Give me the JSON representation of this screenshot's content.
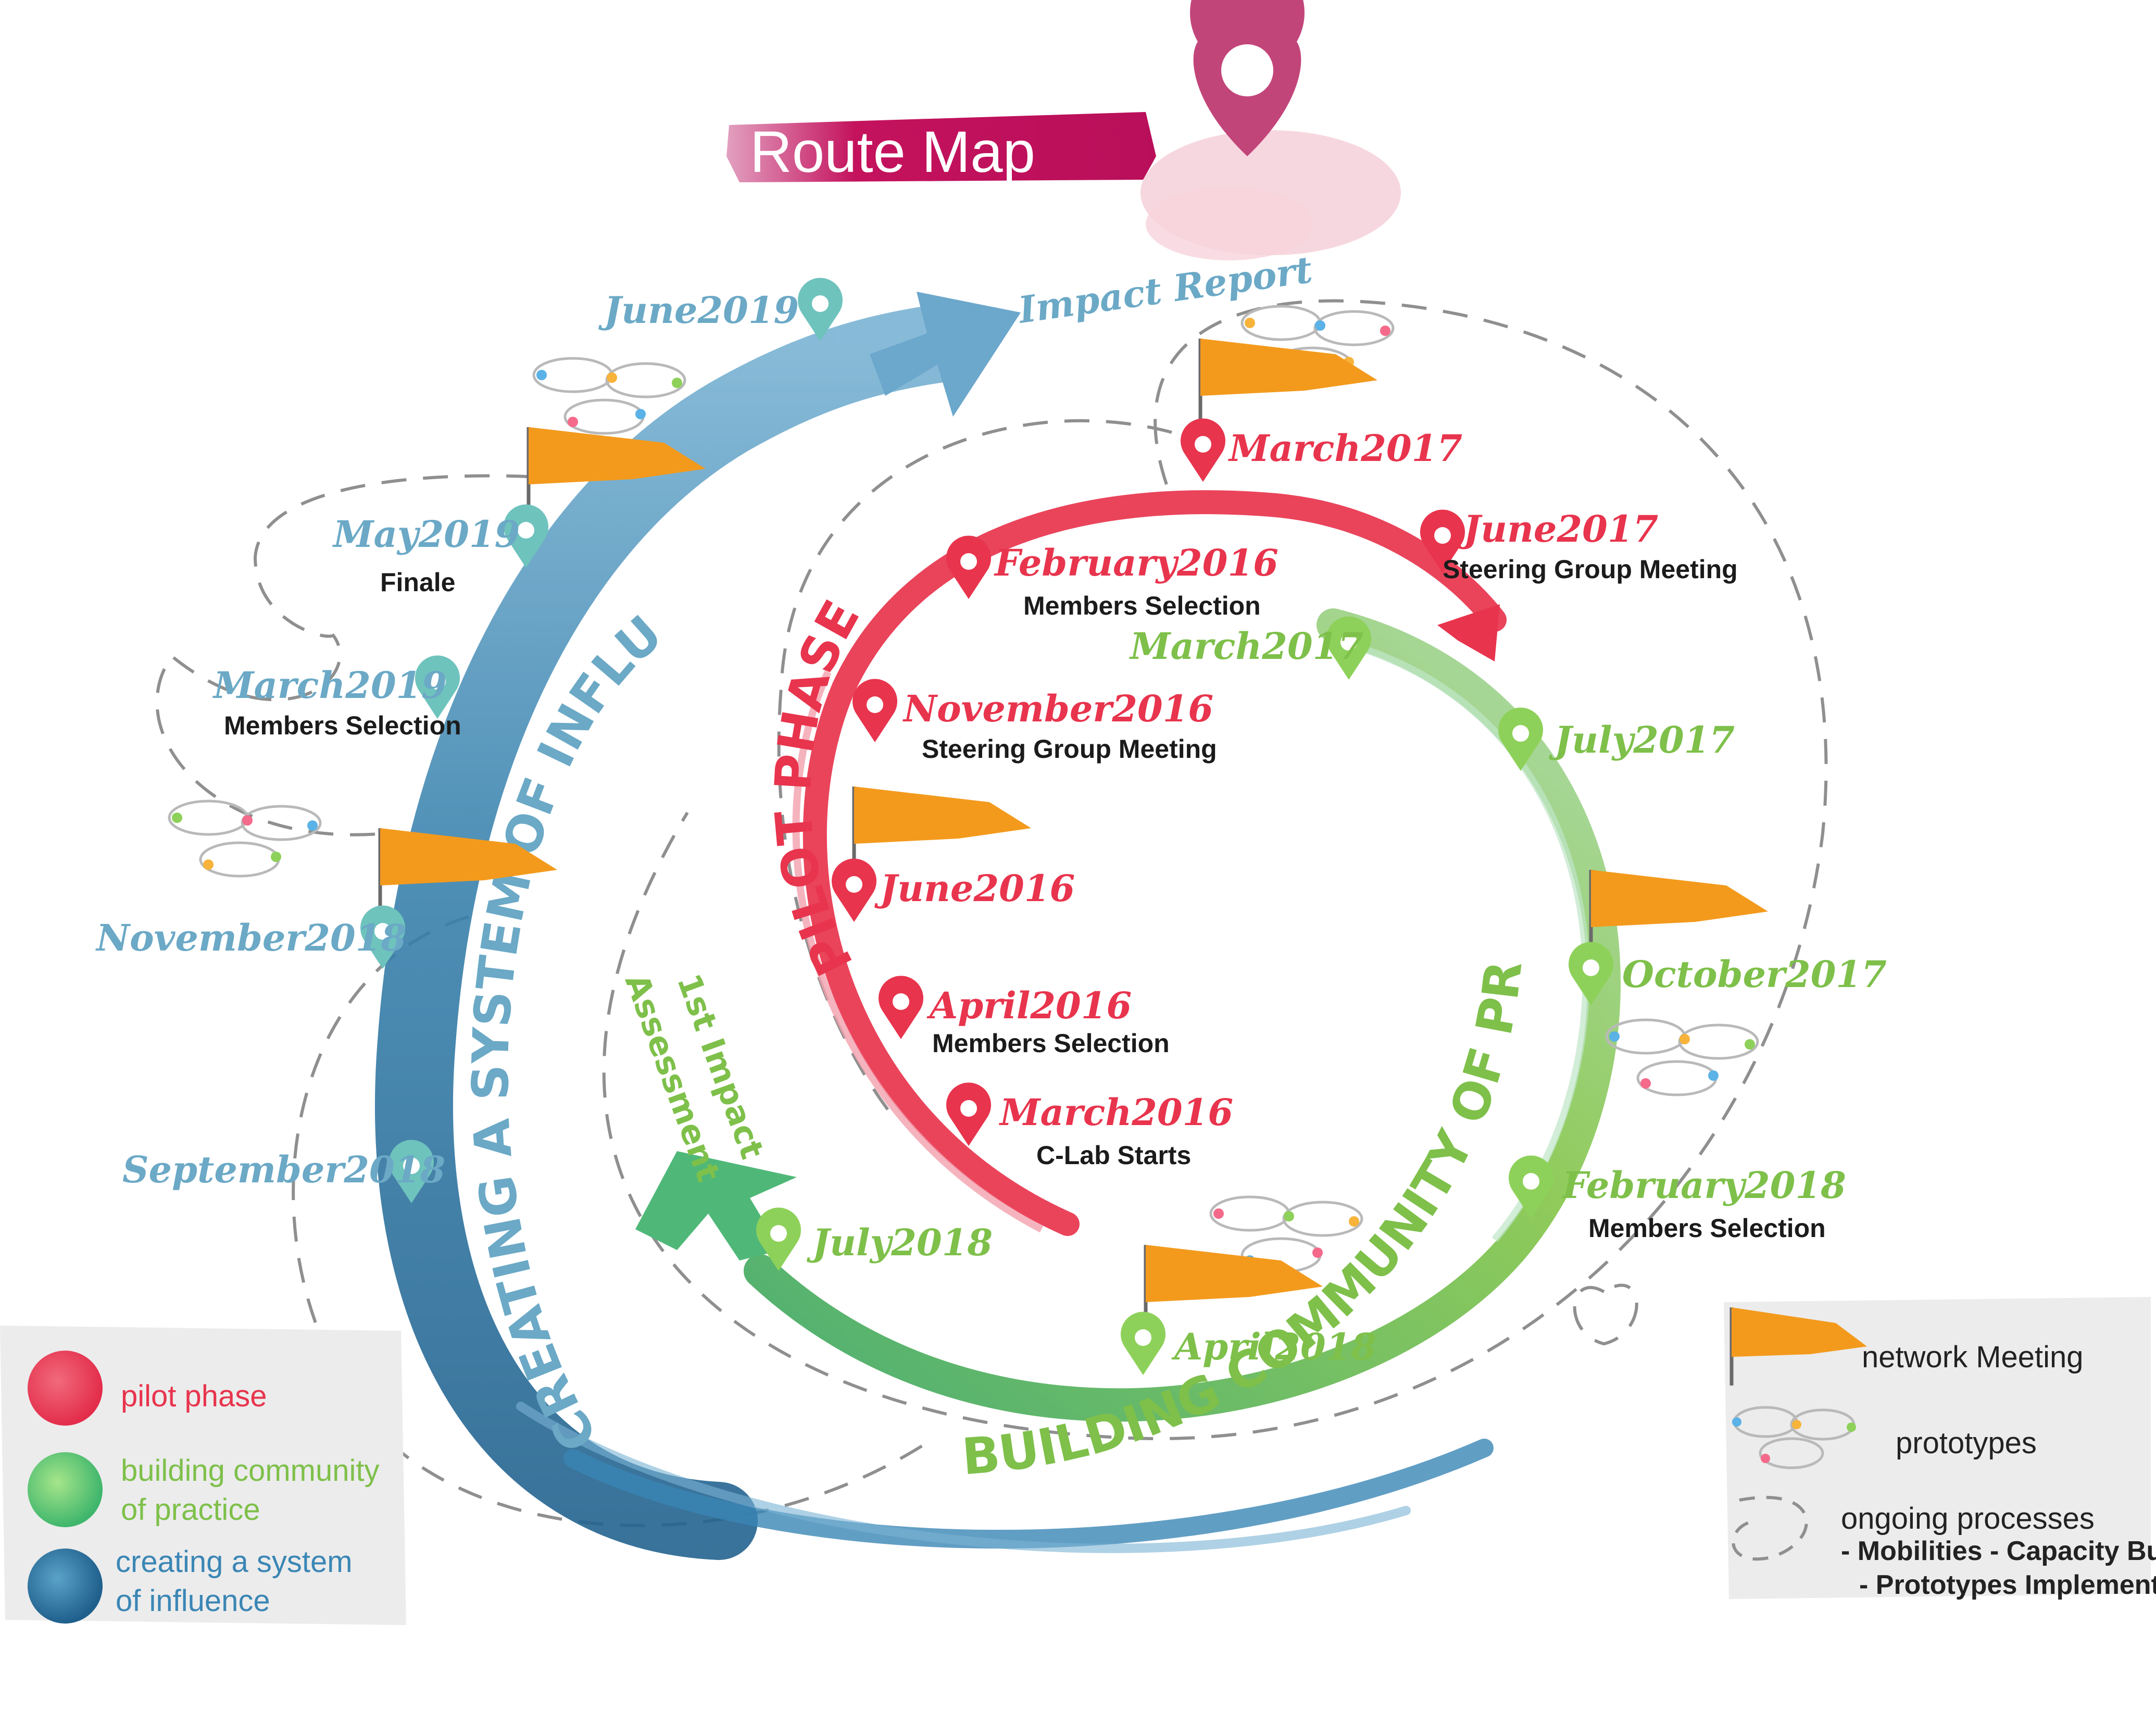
{
  "title": "Route Map",
  "colors": {
    "pilot": "#e8344d",
    "community": "#7ec04a",
    "influence": "#3a86b5",
    "influence_text": "#6ba9c6",
    "flag": "#f39a1d"
  },
  "phases": {
    "pilot": "PILOT PHASE",
    "community": "BUILDING COMMUNITY OF PRACTICE",
    "influence": "CREATING A SYSTEM OF INFLUENCE"
  },
  "assessment": {
    "line1": "1st Impact",
    "line2": "Assessment"
  },
  "impact_report": "Impact Report",
  "milestones": {
    "jun2019": {
      "date": "June2019",
      "event": ""
    },
    "may2019": {
      "date": "May2019",
      "event": "Finale"
    },
    "mar2019": {
      "date": "March2019",
      "event": "Members Selection"
    },
    "nov2018": {
      "date": "November2018",
      "event": ""
    },
    "sep2018": {
      "date": "September2018",
      "event": ""
    },
    "mar2017_top": {
      "date": "March2017",
      "event": ""
    },
    "jun2017": {
      "date": "June2017",
      "event": "Steering Group Meeting"
    },
    "feb2016": {
      "date": "February2016",
      "event": "Members Selection"
    },
    "nov2016": {
      "date": "November2016",
      "event": "Steering Group Meeting"
    },
    "jun2016": {
      "date": "June2016",
      "event": ""
    },
    "apr2016": {
      "date": "April2016",
      "event": "Members Selection"
    },
    "mar2016": {
      "date": "March2016",
      "event": "C-Lab Starts"
    },
    "mar2017_green": {
      "date": "March2017",
      "event": ""
    },
    "jul2017": {
      "date": "July2017",
      "event": ""
    },
    "oct2017": {
      "date": "October2017",
      "event": ""
    },
    "feb2018": {
      "date": "February2018",
      "event": "Members Selection"
    },
    "apr2018": {
      "date": "April2018",
      "event": ""
    },
    "jul2018": {
      "date": "July2018",
      "event": ""
    }
  },
  "legend_left": {
    "pilot": "pilot phase",
    "community_1": "building community",
    "community_2": "of practice",
    "influence_1": "creating a system",
    "influence_2": "of influence"
  },
  "legend_right": {
    "network": "network Meeting",
    "prototypes": "prototypes",
    "ongoing": "ongoing processes",
    "sub1": "- Mobilities - Capacity Building -",
    "sub2": "- Prototypes Implementation -"
  }
}
